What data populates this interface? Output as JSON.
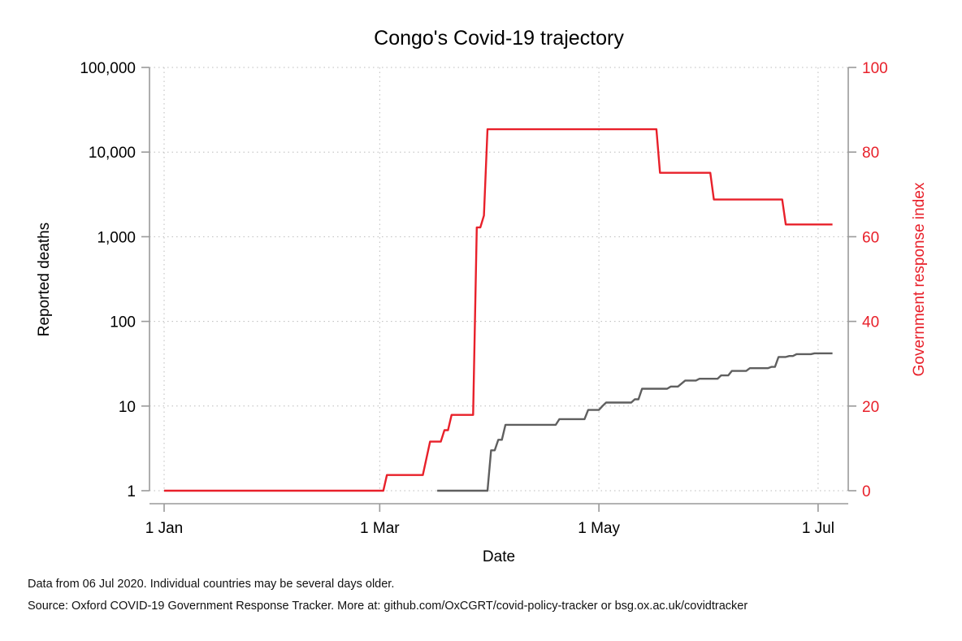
{
  "chart_data": {
    "type": "line",
    "title": "Congo's Covid-19 trajectory",
    "xlabel": "Date",
    "ylabel_left": "Reported deaths",
    "ylabel_right": "Government response index",
    "x_range": [
      "2020-01-01",
      "2020-07-06"
    ],
    "x_ticks": [
      {
        "date": "2020-01-01",
        "label": "1 Jan"
      },
      {
        "date": "2020-03-01",
        "label": "1 Mar"
      },
      {
        "date": "2020-05-01",
        "label": "1 May"
      },
      {
        "date": "2020-07-01",
        "label": "1 Jul"
      }
    ],
    "y_left": {
      "scale": "log",
      "range": [
        1,
        100000
      ],
      "ticks": [
        {
          "value": 1,
          "label": "1"
        },
        {
          "value": 10,
          "label": "10"
        },
        {
          "value": 100,
          "label": "100"
        },
        {
          "value": 1000,
          "label": "1,000"
        },
        {
          "value": 10000,
          "label": "10,000"
        },
        {
          "value": 100000,
          "label": "100,000"
        }
      ]
    },
    "y_right": {
      "scale": "linear",
      "range": [
        0,
        100
      ],
      "ticks": [
        {
          "value": 0,
          "label": "0"
        },
        {
          "value": 20,
          "label": "20"
        },
        {
          "value": 40,
          "label": "40"
        },
        {
          "value": 60,
          "label": "60"
        },
        {
          "value": 80,
          "label": "80"
        },
        {
          "value": 100,
          "label": "100"
        }
      ]
    },
    "grid": true,
    "colors": {
      "deaths": "#5f5f5f",
      "response": "#e8202a",
      "axis": "#9a9a9a",
      "grid": "#bbbbbb"
    },
    "series": [
      {
        "axis": "left",
        "color": "#5f5f5f",
        "points": [
          [
            "2020-03-17",
            1
          ],
          [
            "2020-03-31",
            1
          ],
          [
            "2020-04-01",
            3
          ],
          [
            "2020-04-02",
            3
          ],
          [
            "2020-04-03",
            4
          ],
          [
            "2020-04-04",
            4
          ],
          [
            "2020-04-05",
            6
          ],
          [
            "2020-04-19",
            6
          ],
          [
            "2020-04-20",
            7
          ],
          [
            "2020-04-27",
            7
          ],
          [
            "2020-04-28",
            9
          ],
          [
            "2020-05-01",
            9
          ],
          [
            "2020-05-02",
            10
          ],
          [
            "2020-05-03",
            11
          ],
          [
            "2020-05-10",
            11
          ],
          [
            "2020-05-11",
            12
          ],
          [
            "2020-05-12",
            12
          ],
          [
            "2020-05-13",
            16
          ],
          [
            "2020-05-20",
            16
          ],
          [
            "2020-05-21",
            17
          ],
          [
            "2020-05-23",
            17
          ],
          [
            "2020-05-25",
            20
          ],
          [
            "2020-05-28",
            20
          ],
          [
            "2020-05-29",
            21
          ],
          [
            "2020-06-03",
            21
          ],
          [
            "2020-06-04",
            23
          ],
          [
            "2020-06-06",
            23
          ],
          [
            "2020-06-07",
            26
          ],
          [
            "2020-06-11",
            26
          ],
          [
            "2020-06-12",
            28
          ],
          [
            "2020-06-17",
            28
          ],
          [
            "2020-06-18",
            29
          ],
          [
            "2020-06-19",
            29
          ],
          [
            "2020-06-20",
            38
          ],
          [
            "2020-06-22",
            38
          ],
          [
            "2020-06-23",
            39
          ],
          [
            "2020-06-24",
            39
          ],
          [
            "2020-06-25",
            41
          ],
          [
            "2020-06-29",
            41
          ],
          [
            "2020-06-30",
            42
          ],
          [
            "2020-07-05",
            42
          ]
        ]
      },
      {
        "axis": "right",
        "color": "#e8202a",
        "points": [
          [
            "2020-01-01",
            0
          ],
          [
            "2020-03-02",
            0
          ],
          [
            "2020-03-03",
            3.7
          ],
          [
            "2020-03-13",
            3.7
          ],
          [
            "2020-03-15",
            11.6
          ],
          [
            "2020-03-18",
            11.6
          ],
          [
            "2020-03-19",
            14.3
          ],
          [
            "2020-03-20",
            14.3
          ],
          [
            "2020-03-21",
            17.9
          ],
          [
            "2020-03-27",
            17.9
          ],
          [
            "2020-03-28",
            62.2
          ],
          [
            "2020-03-29",
            62.2
          ],
          [
            "2020-03-30",
            65
          ],
          [
            "2020-03-31",
            85.4
          ],
          [
            "2020-05-17",
            85.4
          ],
          [
            "2020-05-18",
            75.1
          ],
          [
            "2020-06-01",
            75.1
          ],
          [
            "2020-06-02",
            68.8
          ],
          [
            "2020-06-21",
            68.8
          ],
          [
            "2020-06-22",
            62.9
          ],
          [
            "2020-07-05",
            62.9
          ]
        ]
      }
    ]
  },
  "footer": {
    "line1": "Data from 06 Jul 2020. Individual countries may be several days older.",
    "line2": "Source: Oxford COVID-19 Government Response Tracker. More at: github.com/OxCGRT/covid-policy-tracker or bsg.ox.ac.uk/covidtracker"
  }
}
